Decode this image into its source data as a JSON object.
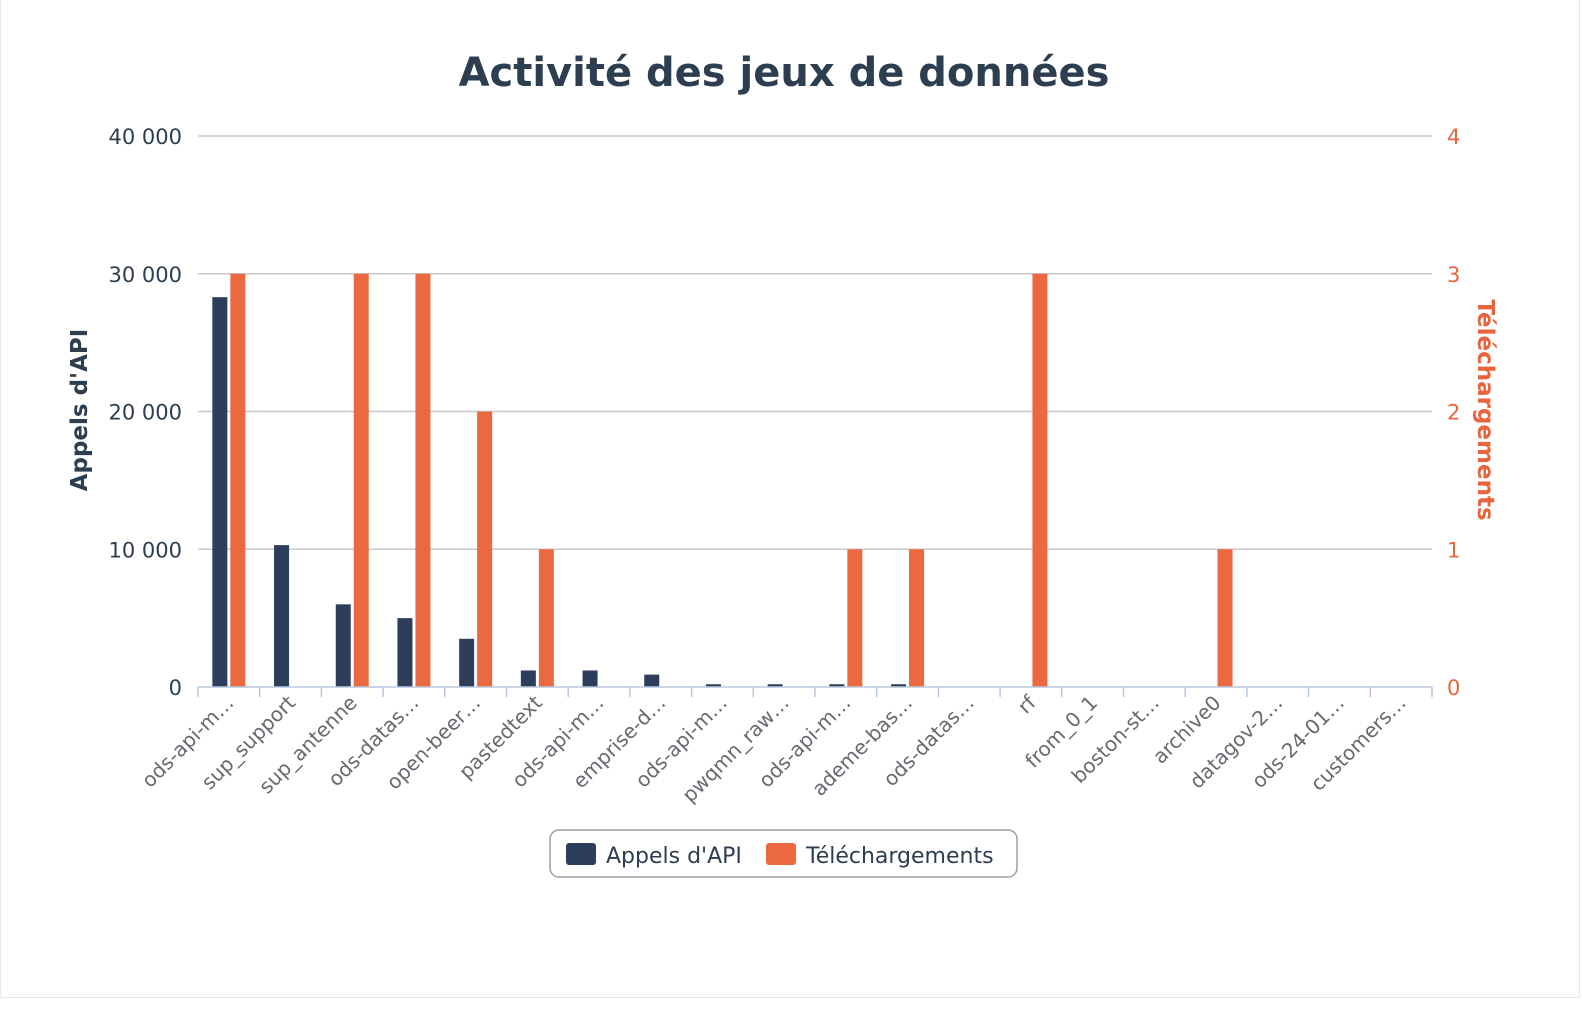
{
  "chart_data": {
    "type": "bar",
    "title": "Activité des jeux de données",
    "categories": [
      "ods-api-m…",
      "sup_support",
      "sup_antenne",
      "ods-datas…",
      "open-beer…",
      "pastedtext",
      "ods-api-m…",
      "emprise-d…",
      "ods-api-m…",
      "pwqmn_raw…",
      "ods-api-m…",
      "ademe-bas…",
      "ods-datas…",
      "rf",
      "from_0_1",
      "boston-st…",
      "archive0",
      "datagov-2…",
      "ods-24-01…",
      "customers…"
    ],
    "series": [
      {
        "name": "Appels d'API",
        "axis": "left",
        "color": "#2c3e5a",
        "values": [
          28300,
          10300,
          6000,
          5000,
          3500,
          1200,
          1200,
          900,
          200,
          200,
          200,
          200,
          0,
          0,
          0,
          0,
          0,
          0,
          0,
          0
        ]
      },
      {
        "name": "Téléchargements",
        "axis": "right",
        "color": "#ec6840",
        "values": [
          3,
          0,
          3,
          3,
          2,
          1,
          0,
          0,
          0,
          0,
          1,
          1,
          0,
          3,
          0,
          0,
          1,
          0,
          0,
          0
        ]
      }
    ],
    "yAxisLeft": {
      "label": "Appels d'API",
      "ylim": [
        0,
        40000
      ],
      "ticks": [
        "0",
        "10 000",
        "20 000",
        "30 000",
        "40 000"
      ]
    },
    "yAxisRight": {
      "label": "Téléchargements",
      "ylim": [
        0,
        4
      ],
      "ticks": [
        "0",
        "1",
        "2",
        "3",
        "4"
      ]
    },
    "grid": true,
    "legend_position": "bottom-center"
  }
}
